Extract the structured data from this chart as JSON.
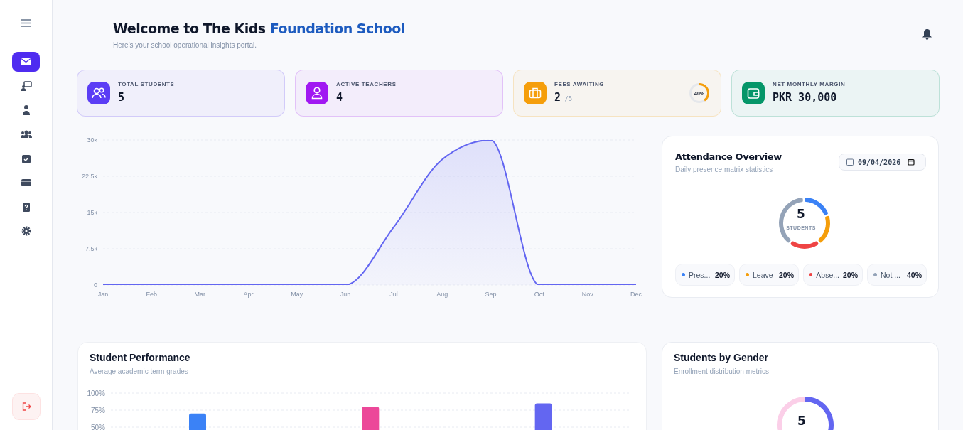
{
  "chart_data": [
    {
      "type": "other",
      "title": "Welcome to The Kids Foundation School",
      "subtitle": "Here's your school operational insights portal.",
      "annotations": [
        "TOTAL STUDENTS",
        "5",
        "ACTIVE TEACHERS",
        "4",
        "FEES AWAITING",
        "2",
        "/5",
        "40%",
        "NET MONTHLY MARGIN",
        "PKR 30,000"
      ],
      "colors": [
        "#5b3df5",
        "#a118f2",
        "#f59e0b",
        "#059669"
      ]
    },
    {
      "type": "area",
      "categories": [
        "Jan",
        "Feb",
        "Mar",
        "Apr",
        "May",
        "Jun",
        "Jul",
        "Aug",
        "Sep",
        "Oct",
        "Nov",
        "Dec"
      ],
      "values": [
        0,
        0,
        0,
        0,
        0,
        0,
        12000,
        26000,
        30000,
        0,
        0,
        0
      ],
      "color": "#6366f1",
      "ylim": [
        0,
        30000
      ],
      "yticks": [
        0,
        {
          "value": 7500,
          "label": "7.5k"
        },
        {
          "value": 15000,
          "label": "15k"
        },
        {
          "value": 22500,
          "label": "22.5k"
        },
        {
          "value": 30000,
          "label": "30k"
        }
      ],
      "grid": "y"
    },
    {
      "type": "donut",
      "title": "Attendance Overview",
      "subtitle": "Daily presence matrix statistics",
      "categories": [
        "Pres...",
        "Leave",
        "Abse...",
        "Not ..."
      ],
      "values": [
        20,
        20,
        20,
        40
      ],
      "colors": [
        "#3b82f6",
        "#f59e0b",
        "#ef4444",
        "#94a3b8"
      ],
      "value_labels": [
        "20%",
        "20%",
        "20%",
        "40%"
      ],
      "annotations": [
        "5",
        "STUDENTS",
        "09/04/2026"
      ],
      "legend": "bottom"
    },
    {
      "type": "bar",
      "title": "Student Performance",
      "subtitle": "Average academic term grades",
      "categories": [
        null,
        null,
        null
      ],
      "values": [
        70,
        80,
        85
      ],
      "colors": [
        "#3b82f6",
        "#ec4899",
        "#6366f1"
      ],
      "ylim": [
        0,
        100
      ],
      "yticks": [
        {
          "value": 50,
          "label": "50%"
        },
        {
          "value": 75,
          "label": "75%"
        },
        {
          "value": 100,
          "label": "100%"
        }
      ],
      "grid": "y"
    },
    {
      "type": "donut",
      "title": "Students by Gender",
      "subtitle": "Enrollment distribution metrics",
      "categories": [
        null,
        null
      ],
      "values": [
        60,
        40
      ],
      "colors": [
        "#6366f1",
        "#fbcfe8"
      ],
      "annotations": [
        "5"
      ]
    }
  ]
}
